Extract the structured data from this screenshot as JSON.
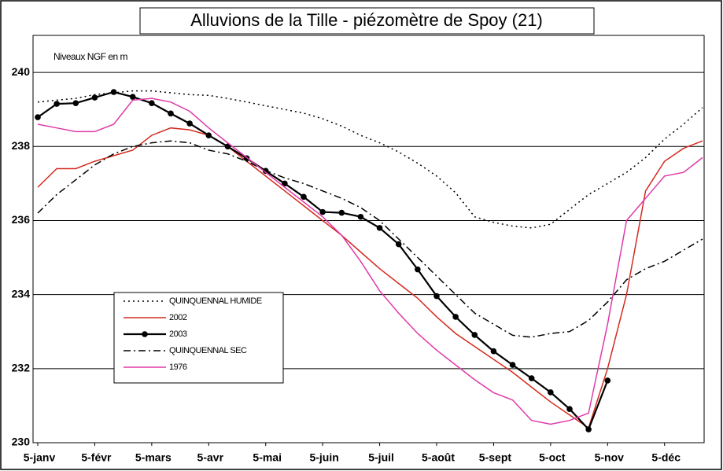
{
  "chart_data": {
    "type": "line",
    "title": "Alluvions de la Tille - piézomètre de Spoy (21)",
    "annotation": "Niveaux NGF en m",
    "categories": [
      "5-janv",
      null,
      null,
      "5-févr",
      null,
      null,
      "5-mars",
      null,
      null,
      "5-avr",
      null,
      null,
      "5-mai",
      null,
      null,
      "5-juin",
      null,
      null,
      "5-juil",
      null,
      null,
      "5-août",
      null,
      null,
      "5-sept",
      null,
      null,
      "5-oct",
      null,
      null,
      "5-nov",
      null,
      null,
      "5-déc",
      null,
      null
    ],
    "ylim": [
      230,
      241
    ],
    "yticks": [
      230,
      232,
      234,
      236,
      238,
      240
    ],
    "grid": true,
    "legend": "lower-left",
    "series": [
      {
        "name": "QUINQUENNAL HUMIDE",
        "color": "#000000",
        "style": "dotted",
        "values": [
          239.2,
          239.25,
          239.3,
          239.4,
          239.45,
          239.5,
          239.5,
          239.45,
          239.4,
          239.38,
          239.3,
          239.2,
          239.1,
          239.0,
          238.9,
          238.75,
          238.55,
          238.3,
          238.1,
          237.85,
          237.55,
          237.2,
          236.75,
          236.1,
          235.95,
          235.85,
          235.8,
          235.9,
          236.3,
          236.7,
          237.0,
          237.3,
          237.7,
          238.2,
          238.6,
          239.05
        ]
      },
      {
        "name": "2002",
        "color": "#d42a1e",
        "style": "solid",
        "values": [
          236.9,
          237.4,
          237.4,
          237.6,
          237.75,
          237.9,
          238.3,
          238.5,
          238.45,
          238.3,
          238.0,
          237.6,
          237.2,
          236.8,
          236.4,
          236.0,
          235.6,
          235.15,
          234.7,
          234.3,
          233.9,
          233.4,
          232.95,
          232.6,
          232.25,
          231.9,
          231.5,
          231.1,
          230.75,
          230.4,
          232.0,
          234.0,
          236.8,
          237.6,
          237.95,
          238.15
        ]
      },
      {
        "name": "2003",
        "color": "#000000",
        "style": "solid",
        "marker": "circle",
        "values": [
          238.79,
          239.15,
          239.17,
          239.32,
          239.47,
          239.34,
          239.17,
          238.89,
          238.62,
          238.3,
          238.0,
          237.68,
          237.34,
          237.0,
          236.64,
          236.23,
          236.21,
          236.1,
          235.8,
          235.36,
          234.68,
          233.96,
          233.4,
          232.91,
          232.47,
          232.1,
          231.74,
          231.36,
          230.91,
          230.36,
          231.68,
          null,
          null,
          null,
          null,
          null
        ]
      },
      {
        "name": "QUINQUENNAL SEC",
        "color": "#000000",
        "style": "dashdot",
        "values": [
          236.2,
          236.7,
          237.1,
          237.5,
          237.8,
          238.0,
          238.1,
          238.15,
          238.1,
          237.9,
          237.8,
          237.6,
          237.35,
          237.15,
          237.0,
          236.8,
          236.6,
          236.35,
          236.0,
          235.5,
          235.0,
          234.5,
          234.0,
          233.5,
          233.2,
          232.9,
          232.85,
          232.95,
          233.0,
          233.3,
          233.8,
          234.4,
          234.7,
          234.9,
          235.2,
          235.5
        ]
      },
      {
        "name": "1976",
        "color": "#e03aa8",
        "style": "solid",
        "values": [
          238.6,
          238.5,
          238.4,
          238.4,
          238.6,
          239.25,
          239.3,
          239.2,
          238.95,
          238.5,
          238.1,
          237.7,
          237.3,
          236.9,
          236.5,
          236.1,
          235.6,
          234.9,
          234.1,
          233.5,
          232.95,
          232.5,
          232.1,
          231.7,
          231.35,
          231.15,
          230.6,
          230.5,
          230.6,
          230.8,
          233.2,
          236.0,
          236.6,
          237.2,
          237.3,
          237.7
        ]
      }
    ]
  }
}
